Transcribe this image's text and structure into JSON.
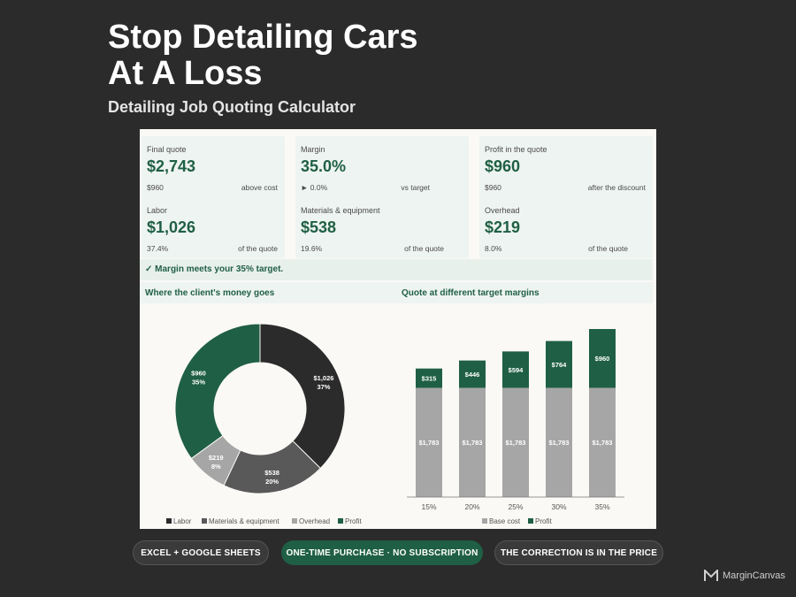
{
  "header": {
    "title_line1": "Stop Detailing Cars",
    "title_line2": "At A Loss",
    "subtitle": "Detailing Job Quoting Calculator"
  },
  "kpis": [
    {
      "label": "Final quote",
      "value": "$2,743",
      "sub_left": "$960",
      "sub_right": "above cost"
    },
    {
      "label": "Margin",
      "value": "35.0%",
      "sub_left": "► 0.0%",
      "sub_right": "vs target"
    },
    {
      "label": "Profit in the quote",
      "value": "$960",
      "sub_left": "$960",
      "sub_right": "after the discount"
    },
    {
      "label": "Labor",
      "value": "$1,026",
      "sub_left": "37.4%",
      "sub_right": "of the quote"
    },
    {
      "label": "Materials & equipment",
      "value": "$538",
      "sub_left": "19.6%",
      "sub_right": "of the quote"
    },
    {
      "label": "Overhead",
      "value": "$219",
      "sub_left": "8.0%",
      "sub_right": "of the quote"
    }
  ],
  "banner": "✓ Margin meets your 35% target.",
  "sections": {
    "left": "Where the client's money goes",
    "right": "Quote at different target margins"
  },
  "colors": {
    "labor": "#2b2b2b",
    "materials": "#595959",
    "overhead": "#a6a6a6",
    "profit": "#1f5f45",
    "base": "#a6a6a6"
  },
  "chart_data": [
    {
      "type": "pie",
      "style": "donut",
      "title": "",
      "slices": [
        {
          "name": "Labor",
          "value": 1026,
          "label": "$1,026",
          "pct": "37%"
        },
        {
          "name": "Materials & equipment",
          "value": 538,
          "label": "$538",
          "pct": "20%"
        },
        {
          "name": "Overhead",
          "value": 219,
          "label": "$219",
          "pct": "8%"
        },
        {
          "name": "Profit",
          "value": 960,
          "label": "$960",
          "pct": "35%"
        }
      ],
      "legend": "bottom"
    },
    {
      "type": "bar",
      "stacked": true,
      "title": "",
      "categories": [
        "15%",
        "20%",
        "25%",
        "30%",
        "35%"
      ],
      "series": [
        {
          "name": "Base cost",
          "values": [
            1783,
            1783,
            1783,
            1783,
            1783
          ],
          "labels": [
            "$1,783",
            "$1,783",
            "$1,783",
            "$1,783",
            "$1,783"
          ]
        },
        {
          "name": "Profit",
          "values": [
            315,
            446,
            594,
            764,
            960
          ],
          "labels": [
            "$315",
            "$446",
            "$594",
            "$764",
            "$960"
          ]
        }
      ],
      "ylim": [
        0,
        2743
      ],
      "legend": "bottom",
      "grid": false
    }
  ],
  "footer": {
    "pills": [
      "EXCEL + GOOGLE SHEETS",
      "ONE-TIME PURCHASE · NO SUBSCRIPTION",
      "THE CORRECTION IS IN THE PRICE"
    ],
    "brand": "MarginCanvas"
  }
}
